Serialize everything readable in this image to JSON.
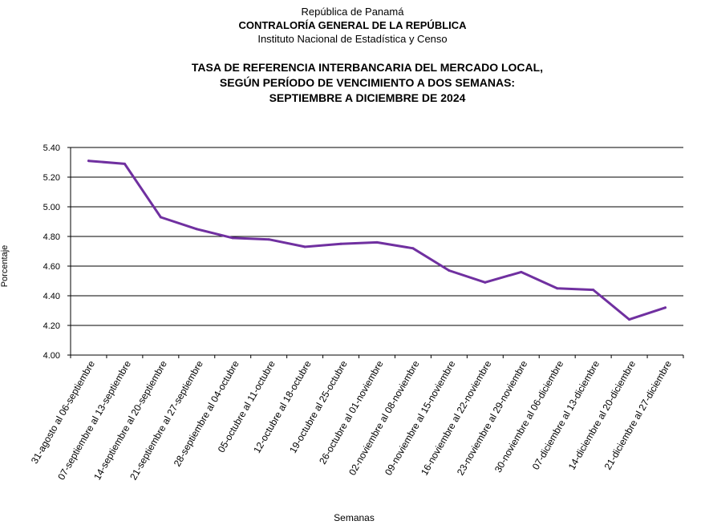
{
  "header": {
    "line1": "República de Panamá",
    "line2": "CONTRALORÍA GENERAL DE LA REPÚBLICA",
    "line3": "Instituto Nacional de Estadística y Censo"
  },
  "chart_data": {
    "type": "line",
    "title_lines": [
      "TASA DE REFERENCIA INTERBANCARIA DEL MERCADO LOCAL,",
      "SEGÚN PERÍODO DE VENCIMIENTO A DOS SEMANAS:",
      "SEPTIEMBRE A DICIEMBRE DE 2024"
    ],
    "xlabel": "Semanas",
    "ylabel": "Porcentaje",
    "ylim": [
      4.0,
      5.4
    ],
    "yticks": [
      "4.00",
      "4.20",
      "4.40",
      "4.60",
      "4.80",
      "5.00",
      "5.20",
      "5.40"
    ],
    "grid": true,
    "line_color": "#7030a0",
    "categories": [
      "31-agosto al 06-septiembre",
      "07-septiembre al 13-septiembre",
      "14-septiembre al 20-septiembre",
      "21-septiembre al 27-septiembre",
      "28-septiembre al 04-octubre",
      "05-octubre al 11-octubre",
      "12-octubre al 18-octubre",
      "19-octubre al 25-octubre",
      "26-octubre al 01-noviembre",
      "02-noviembre al 08-noviembre",
      "09-noviembre al 15-noviembre",
      "16-noviembre al 22-noviembre",
      "23-noviembre al 29-noviembre",
      "30-noviembre al 06-diciembre",
      "07-diciembre al 13-diciembre",
      "14-diciembre al 20-diciembre",
      "21-diciembre al 27-diciembre"
    ],
    "values": [
      5.31,
      5.29,
      4.93,
      4.85,
      4.79,
      4.78,
      4.73,
      4.75,
      4.76,
      4.72,
      4.57,
      4.49,
      4.56,
      4.45,
      4.44,
      4.24,
      4.32
    ]
  }
}
